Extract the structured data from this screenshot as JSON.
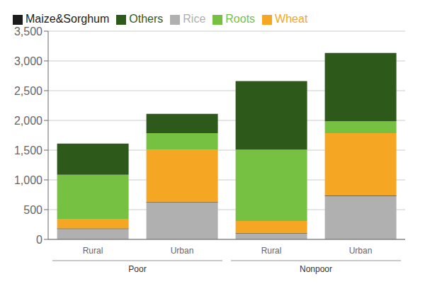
{
  "chart_data": {
    "type": "bar",
    "stacked": true,
    "categories": [
      "Rural",
      "Urban",
      "Rural",
      "Urban"
    ],
    "group_labels": [
      "Poor",
      "Nonpoor"
    ],
    "series": [
      {
        "name": "Rice",
        "color": "#b0b0b0",
        "values": [
          175,
          625,
          100,
          725
        ]
      },
      {
        "name": "Maize&Sorghum",
        "color": "#1c1c1c",
        "values": [
          10,
          10,
          10,
          10
        ]
      },
      {
        "name": "Wheat",
        "color": "#f5a623",
        "values": [
          150,
          875,
          200,
          1050
        ]
      },
      {
        "name": "Roots",
        "color": "#77c142",
        "values": [
          750,
          275,
          1200,
          200
        ]
      },
      {
        "name": "Others",
        "color": "#2d5a1b",
        "values": [
          525,
          325,
          1150,
          1150
        ]
      }
    ],
    "ylim": [
      0,
      3500
    ],
    "yticks": [
      0,
      500,
      {
        "value": 1000,
        "label": "1,000"
      },
      {
        "value": 1500,
        "label": "1,500"
      },
      {
        "value": 2000,
        "label": "2,000"
      },
      {
        "value": 2500,
        "label": "2,500"
      },
      {
        "value": 3000,
        "label": "3,000"
      },
      {
        "value": 3500,
        "label": "3,500"
      }
    ],
    "grid": true,
    "legend": "upper left"
  }
}
